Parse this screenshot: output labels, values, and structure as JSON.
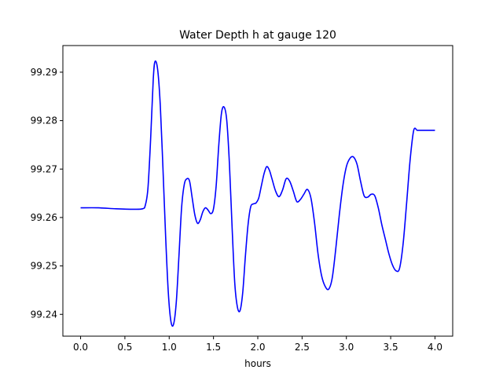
{
  "chart_data": {
    "type": "line",
    "title": "Water Depth h at gauge 120",
    "xlabel": "hours",
    "ylabel": "",
    "xlim": [
      -0.2,
      4.2
    ],
    "ylim": [
      99.2355,
      99.2955
    ],
    "xticks": [
      0.0,
      0.5,
      1.0,
      1.5,
      2.0,
      2.5,
      3.0,
      3.5,
      4.0
    ],
    "xtick_labels": [
      "0.0",
      "0.5",
      "1.0",
      "1.5",
      "2.0",
      "2.5",
      "3.0",
      "3.5",
      "4.0"
    ],
    "yticks": [
      99.24,
      99.25,
      99.26,
      99.27,
      99.28,
      99.29
    ],
    "ytick_labels": [
      "99.24",
      "99.25",
      "99.26",
      "99.27",
      "99.28",
      "99.29"
    ],
    "grid": false,
    "line_color": "#0000ff",
    "series": [
      {
        "x": [
          0.0,
          0.2,
          0.4,
          0.6,
          0.7,
          0.73,
          0.76,
          0.79,
          0.82,
          0.84,
          0.87,
          0.9,
          0.93,
          0.96,
          0.99,
          1.02,
          1.05,
          1.08,
          1.11,
          1.14,
          1.17,
          1.2,
          1.23,
          1.26,
          1.29,
          1.32,
          1.35,
          1.38,
          1.41,
          1.44,
          1.47,
          1.5,
          1.53,
          1.56,
          1.59,
          1.62,
          1.65,
          1.68,
          1.71,
          1.74,
          1.77,
          1.8,
          1.83,
          1.86,
          1.89,
          1.92,
          1.95,
          1.98,
          2.01,
          2.04,
          2.07,
          2.1,
          2.13,
          2.16,
          2.2,
          2.24,
          2.28,
          2.32,
          2.36,
          2.4,
          2.44,
          2.48,
          2.52,
          2.56,
          2.6,
          2.64,
          2.68,
          2.72,
          2.76,
          2.8,
          2.84,
          2.88,
          2.92,
          2.96,
          3.0,
          3.04,
          3.08,
          3.12,
          3.16,
          3.2,
          3.24,
          3.28,
          3.32,
          3.36,
          3.4,
          3.44,
          3.48,
          3.52,
          3.56,
          3.6,
          3.64,
          3.68,
          3.72,
          3.76,
          3.8,
          3.84,
          3.88,
          3.92,
          3.96,
          4.0
        ],
        "y": [
          99.262,
          99.262,
          99.2618,
          99.2617,
          99.2618,
          99.2625,
          99.266,
          99.276,
          99.2885,
          99.2922,
          99.2905,
          99.283,
          99.27,
          99.256,
          99.2445,
          99.2385,
          99.238,
          99.2425,
          99.252,
          99.262,
          99.2668,
          99.268,
          99.2675,
          99.264,
          99.2605,
          99.2588,
          99.2595,
          99.2612,
          99.262,
          99.2615,
          99.2608,
          99.2618,
          99.2665,
          99.275,
          99.2815,
          99.2828,
          99.28,
          99.271,
          99.258,
          99.2465,
          99.2415,
          99.2408,
          99.2445,
          99.252,
          99.2585,
          99.2622,
          99.2628,
          99.263,
          99.264,
          99.2665,
          99.269,
          99.2705,
          99.2698,
          99.268,
          99.2655,
          99.2643,
          99.2657,
          99.268,
          99.2675,
          99.2655,
          99.2633,
          99.2637,
          99.2648,
          99.2658,
          99.264,
          99.259,
          99.2525,
          99.248,
          99.2458,
          99.2452,
          99.2475,
          99.2535,
          99.2605,
          99.2665,
          99.2705,
          99.2722,
          99.2725,
          99.271,
          99.2675,
          99.2645,
          99.2642,
          99.2648,
          99.2645,
          99.262,
          99.2585,
          99.2555,
          99.2525,
          99.2502,
          99.249,
          99.2495,
          99.2545,
          99.263,
          99.272,
          99.278,
          99.278,
          99.278,
          99.278,
          99.278,
          99.278,
          99.278
        ]
      }
    ]
  }
}
